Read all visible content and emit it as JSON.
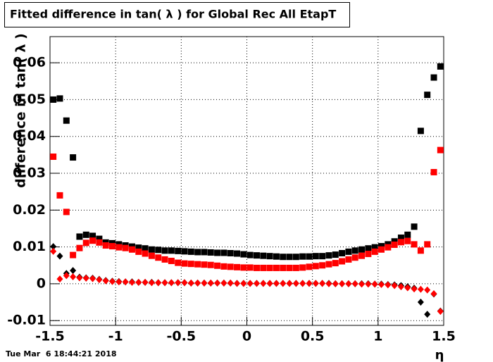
{
  "chart_data": {
    "type": "scatter",
    "title": "Fitted difference in tan( λ ) for Global Rec All EtapT",
    "y_label": "difference in tan( λ )",
    "x_label": "η",
    "timestamp": "Tue Mar  6 18:44:21 2018",
    "xlim": [
      -1.5,
      1.5
    ],
    "xticks": [
      -1.5,
      -1,
      -0.5,
      0,
      0.5,
      1,
      1.5
    ],
    "ylim": [
      -0.0113,
      0.0671
    ],
    "yticks": [
      -0.01,
      0,
      0.01,
      0.02,
      0.03,
      0.04,
      0.05,
      0.06
    ],
    "grid": true,
    "x": [
      -1.475,
      -1.425,
      -1.375,
      -1.325,
      -1.275,
      -1.225,
      -1.175,
      -1.125,
      -1.075,
      -1.025,
      -0.975,
      -0.925,
      -0.875,
      -0.825,
      -0.775,
      -0.725,
      -0.675,
      -0.625,
      -0.575,
      -0.525,
      -0.475,
      -0.425,
      -0.375,
      -0.325,
      -0.275,
      -0.225,
      -0.175,
      -0.125,
      -0.075,
      -0.025,
      0.025,
      0.075,
      0.125,
      0.175,
      0.225,
      0.275,
      0.325,
      0.375,
      0.425,
      0.475,
      0.525,
      0.575,
      0.625,
      0.675,
      0.725,
      0.775,
      0.825,
      0.875,
      0.925,
      0.975,
      1.025,
      1.075,
      1.125,
      1.175,
      1.225,
      1.275,
      1.325,
      1.375,
      1.425,
      1.475
    ],
    "series": [
      {
        "color": "#000000",
        "marker": "square",
        "values": [
          0.05,
          0.0503,
          0.0443,
          0.0343,
          0.0128,
          0.0133,
          0.013,
          0.0122,
          0.0112,
          0.011,
          0.0107,
          0.0104,
          0.0101,
          0.0098,
          0.0096,
          0.0093,
          0.0092,
          0.009,
          0.009,
          0.0089,
          0.0088,
          0.0087,
          0.0086,
          0.0086,
          0.0085,
          0.0084,
          0.0084,
          0.0083,
          0.0082,
          0.008,
          0.0078,
          0.0077,
          0.0076,
          0.0075,
          0.0074,
          0.0073,
          0.0073,
          0.0073,
          0.0074,
          0.0074,
          0.0075,
          0.0075,
          0.0077,
          0.0079,
          0.0083,
          0.0087,
          0.009,
          0.0093,
          0.0096,
          0.0099,
          0.0102,
          0.0107,
          0.0115,
          0.0125,
          0.0133,
          0.0155,
          0.0415,
          0.0513,
          0.056,
          0.059
        ]
      },
      {
        "color": "#ff0000",
        "marker": "square",
        "values": [
          0.0345,
          0.024,
          0.0195,
          0.0078,
          0.0097,
          0.0111,
          0.0117,
          0.0112,
          0.0104,
          0.0102,
          0.0099,
          0.0097,
          0.0093,
          0.0087,
          0.0082,
          0.0076,
          0.0071,
          0.0066,
          0.0062,
          0.0057,
          0.0055,
          0.0054,
          0.0053,
          0.0052,
          0.0051,
          0.0049,
          0.0047,
          0.0046,
          0.0045,
          0.0044,
          0.0044,
          0.0043,
          0.0043,
          0.0043,
          0.0043,
          0.0043,
          0.0043,
          0.0043,
          0.0044,
          0.0046,
          0.0048,
          0.005,
          0.0053,
          0.0056,
          0.0061,
          0.0066,
          0.0071,
          0.0076,
          0.0081,
          0.0087,
          0.0093,
          0.0099,
          0.0106,
          0.0113,
          0.0116,
          0.0107,
          0.009,
          0.0107,
          0.0303,
          0.0363
        ]
      },
      {
        "color": "#000000",
        "marker": "diamond",
        "values": [
          0.0101,
          0.0075,
          0.0028,
          0.0036,
          0.0018,
          0.0016,
          0.0015,
          0.0012,
          0.0009,
          0.0007,
          0.0006,
          0.0005,
          0.0005,
          0.0004,
          0.0004,
          0.0004,
          0.0003,
          0.0003,
          0.0003,
          0.0003,
          0.0003,
          0.0002,
          0.0002,
          0.0002,
          0.0002,
          0.0002,
          0.0002,
          0.0002,
          0.0001,
          0.0001,
          0.0001,
          0.0001,
          0.0001,
          0.0001,
          0.0001,
          0.0001,
          0.0001,
          0.0001,
          0.0001,
          0.0001,
          0.0001,
          0.0001,
          0.0001,
          0,
          0,
          0,
          0,
          0,
          0,
          -0.0001,
          -0.0001,
          -0.0002,
          -0.0003,
          -0.0005,
          -0.0008,
          -0.0012,
          -0.005,
          -0.0083,
          -0.0028,
          -0.0074
        ]
      },
      {
        "color": "#ff0000",
        "marker": "diamond",
        "values": [
          0.0088,
          0.0013,
          0.0022,
          0.0019,
          0.0016,
          0.0015,
          0.0014,
          0.0011,
          0.0008,
          0.0006,
          0.0005,
          0.0005,
          0.0004,
          0.0004,
          0.0004,
          0.0003,
          0.0003,
          0.0003,
          0.0003,
          0.0003,
          0.0003,
          0.0002,
          0.0002,
          0.0002,
          0.0002,
          0.0002,
          0.0002,
          0.0002,
          0.0001,
          0.0001,
          0.0001,
          0.0001,
          0.0001,
          0.0001,
          0.0001,
          0.0001,
          0.0001,
          0.0001,
          0.0001,
          0.0001,
          0.0001,
          0.0001,
          0,
          0,
          0,
          0,
          0,
          -0.0001,
          -0.0001,
          -0.0001,
          -0.0002,
          -0.0003,
          -0.0005,
          -0.0008,
          -0.0011,
          -0.0014,
          -0.0015,
          -0.0017,
          -0.0027,
          -0.0075
        ]
      }
    ]
  }
}
